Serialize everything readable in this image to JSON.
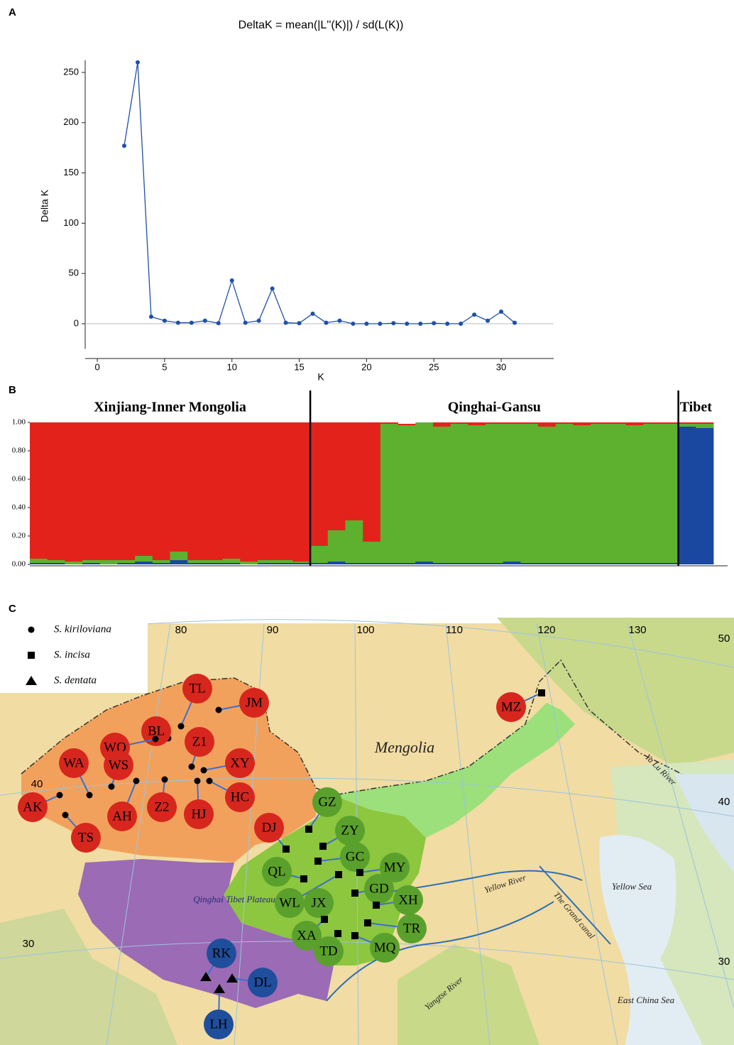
{
  "chart_data": [
    {
      "type": "line",
      "label": "A",
      "title": "DeltaK = mean(|L''(K)|) / sd(L(K))",
      "x_label": "K",
      "y_label": "Delta K",
      "x": [
        2,
        3,
        4,
        5,
        6,
        7,
        8,
        9,
        10,
        11,
        12,
        13,
        14,
        15,
        16,
        17,
        18,
        19,
        20,
        21,
        22,
        23,
        24,
        25,
        26,
        27,
        28,
        29,
        30,
        31
      ],
      "series": [
        {
          "color": "#1f4fa8",
          "values": [
            177,
            260,
            7,
            3,
            1,
            1,
            3,
            0.5,
            43,
            1,
            3,
            35,
            1,
            0.5,
            10,
            1,
            3,
            0,
            0,
            0,
            0.5,
            0,
            0,
            0.5,
            0,
            0,
            9,
            3,
            12,
            1
          ]
        }
      ],
      "xlim": [
        -0.9,
        33.9
      ],
      "ylim": [
        -25,
        262
      ],
      "xticks": [
        0,
        5,
        10,
        15,
        20,
        25,
        30
      ],
      "yticks": [
        0,
        50,
        100,
        150,
        200,
        250
      ],
      "zero_line": true
    },
    {
      "type": "stacked-bar",
      "label": "B",
      "groups": [
        {
          "name": "Xinjiang-Inner Mongolia",
          "count": 16
        },
        {
          "name": "Qinghai-Gansu",
          "count": 21
        },
        {
          "name": "Tibet",
          "count": 2
        }
      ],
      "series": [
        {
          "color": "#1a47a0",
          "values": [
            0.01,
            0.01,
            0,
            0.01,
            0,
            0.01,
            0.02,
            0.01,
            0.03,
            0.01,
            0.01,
            0.01,
            0,
            0.01,
            0.01,
            0.01,
            0.01,
            0.02,
            0.01,
            0.01,
            0.01,
            0.01,
            0.02,
            0.01,
            0.01,
            0.01,
            0.01,
            0.02,
            0.01,
            0.01,
            0.01,
            0.01,
            0.01,
            0.01,
            0.01,
            0.01,
            0.01,
            0.97,
            0.96
          ]
        },
        {
          "color": "#5db12f",
          "values": [
            0.03,
            0.02,
            0.02,
            0.02,
            0.03,
            0.02,
            0.04,
            0.02,
            0.06,
            0.02,
            0.02,
            0.03,
            0.02,
            0.02,
            0.02,
            0.01,
            0.12,
            0.22,
            0.3,
            0.15,
            0.98,
            0.97,
            0.98,
            0.96,
            0.98,
            0.97,
            0.98,
            0.97,
            0.98,
            0.96,
            0.98,
            0.97,
            0.98,
            0.98,
            0.97,
            0.98,
            0.98,
            0.02,
            0.03
          ]
        },
        {
          "color": "#e3231b",
          "values": [
            0.96,
            0.97,
            0.98,
            0.97,
            0.97,
            0.97,
            0.94,
            0.97,
            0.91,
            0.97,
            0.97,
            0.96,
            0.98,
            0.97,
            0.97,
            0.98,
            0.87,
            0.76,
            0.69,
            0.84,
            0.01,
            0.01,
            0,
            0.03,
            0.01,
            0.02,
            0.01,
            0.01,
            0.01,
            0.03,
            0.01,
            0.02,
            0.01,
            0.01,
            0.02,
            0.01,
            0.01,
            0.01,
            0.01
          ]
        }
      ],
      "ylim": [
        0,
        1
      ],
      "yticks": [
        {
          "value": 0,
          "label": "0.00"
        },
        {
          "value": 0.2,
          "label": "0.20"
        },
        {
          "value": 0.4,
          "label": "0.40"
        },
        {
          "value": 0.6,
          "label": "0.60"
        },
        {
          "value": 0.8,
          "label": "0.80"
        },
        {
          "value": 1,
          "label": "1.00"
        }
      ]
    }
  ],
  "map": {
    "label": "C",
    "species": [
      {
        "name": "S. kiriloviana",
        "marker": "circle",
        "populations": [
          {
            "name": "TL",
            "color": "#d7261e"
          },
          {
            "name": "BL",
            "color": "#d7261e"
          },
          {
            "name": "JM",
            "color": "#d7261e"
          },
          {
            "name": "WQ",
            "color": "#d7261e"
          },
          {
            "name": "Z1",
            "color": "#d7261e"
          },
          {
            "name": "XY",
            "color": "#d7261e"
          },
          {
            "name": "WA",
            "color": "#d7261e"
          },
          {
            "name": "WS",
            "color": "#d7261e"
          },
          {
            "name": "AK",
            "color": "#d7261e"
          },
          {
            "name": "AH",
            "color": "#d7261e"
          },
          {
            "name": "Z2",
            "color": "#d7261e"
          },
          {
            "name": "HJ",
            "color": "#d7261e"
          },
          {
            "name": "HC",
            "color": "#d7261e"
          },
          {
            "name": "TS",
            "color": "#d7261e"
          }
        ]
      },
      {
        "name": "S. incisa",
        "marker": "square",
        "populations": [
          {
            "name": "DJ",
            "color": "#d7261e"
          },
          {
            "name": "MZ",
            "color": "#d7261e"
          },
          {
            "name": "GZ",
            "color": "#5aa02c"
          },
          {
            "name": "ZY",
            "color": "#5aa02c"
          },
          {
            "name": "GC",
            "color": "#5aa02c"
          },
          {
            "name": "QL",
            "color": "#5aa02c"
          },
          {
            "name": "MY",
            "color": "#5aa02c"
          },
          {
            "name": "GD",
            "color": "#5aa02c"
          },
          {
            "name": "WL",
            "color": "#5aa02c"
          },
          {
            "name": "JX",
            "color": "#5aa02c"
          },
          {
            "name": "XH",
            "color": "#5aa02c"
          },
          {
            "name": "XA",
            "color": "#5aa02c"
          },
          {
            "name": "TD",
            "color": "#5aa02c"
          },
          {
            "name": "TR",
            "color": "#5aa02c"
          },
          {
            "name": "MQ",
            "color": "#5aa02c"
          }
        ]
      },
      {
        "name": "S. dentata",
        "marker": "triangle",
        "populations": [
          {
            "name": "RK",
            "color": "#1f4e9c"
          },
          {
            "name": "DL",
            "color": "#1f4e9c"
          },
          {
            "name": "LH",
            "color": "#1f4e9c"
          }
        ]
      }
    ],
    "longitudes": [
      80,
      90,
      100,
      110,
      120,
      130
    ],
    "latitudes": [
      50,
      40,
      40,
      30,
      30
    ],
    "places": [
      "Mengolia",
      "Qinghai Tibet Plateau",
      "Yellow River",
      "The Grand canal",
      "Yellow Sea",
      "East China Sea",
      "Ya Lu River",
      "Yangtse River"
    ]
  }
}
